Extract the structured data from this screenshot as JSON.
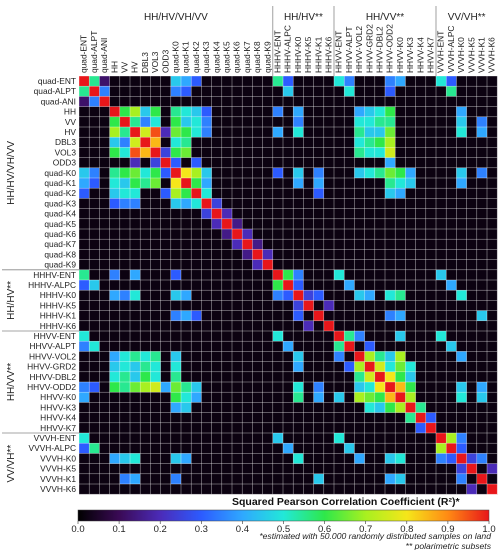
{
  "chart_data": {
    "type": "heatmap",
    "labels": [
      "quad-ENT",
      "quad-ALPT",
      "quad-ANI",
      "HH",
      "VV",
      "HV",
      "DBL3",
      "VOL3",
      "ODD3",
      "quad-K0",
      "quad-K1",
      "quad-K2",
      "quad-K3",
      "quad-K4",
      "quad-K5",
      "quad-K6",
      "quad-K7",
      "quad-K8",
      "quad-K9",
      "HHHV-ENT",
      "HHHV-ALPC",
      "HHHV-K0",
      "HHHV-K5",
      "HHHV-K1",
      "HHHV-K6",
      "HHVV-ENT",
      "HHVV-ALPT",
      "HHVV-VOL2",
      "HHVV-GRD2",
      "HHVV-DBL2",
      "HHVV-ODD2",
      "HHVV-K0",
      "HHVV-K3",
      "HHVV-K4",
      "HHVV-K7",
      "VVVH-ENT",
      "VVVH-ALPC",
      "VVVH-K0",
      "VVVH-K5",
      "VVVH-K1",
      "VVVH-K6"
    ],
    "groups": [
      {
        "name": "HH/HV/VH/VV",
        "start": 0,
        "end": 18
      },
      {
        "name": "HH/HV**",
        "start": 19,
        "end": 24
      },
      {
        "name": "HH/VV**",
        "start": 25,
        "end": 34
      },
      {
        "name": "VV/VH**",
        "start": 35,
        "end": 40
      }
    ],
    "colorbar": {
      "title": "Squared Pearson Correlation Coefficient (R²)*",
      "ticks": [
        "0.0",
        "0.1",
        "0.2",
        "0.3",
        "0.4",
        "0.5",
        "0.6",
        "0.7",
        "0.8",
        "0.9",
        "1.0"
      ],
      "range": [
        0,
        1
      ]
    },
    "notes": [
      "*estimated with 50.000 randomly distributed samples on land",
      "** polarimetric subsets"
    ],
    "strong_pairs": [
      [
        0,
        1,
        0.55
      ],
      [
        1,
        2,
        0.35
      ],
      [
        0,
        2,
        0.12
      ],
      [
        3,
        4,
        0.6
      ],
      [
        3,
        5,
        0.7
      ],
      [
        4,
        5,
        0.55
      ],
      [
        3,
        6,
        0.45
      ],
      [
        4,
        6,
        0.35
      ],
      [
        5,
        6,
        0.75
      ],
      [
        5,
        7,
        0.95
      ],
      [
        6,
        7,
        0.85
      ],
      [
        3,
        7,
        0.6
      ],
      [
        4,
        7,
        0.5
      ],
      [
        7,
        8,
        0.25
      ],
      [
        5,
        8,
        0.2
      ],
      [
        3,
        9,
        0.55
      ],
      [
        4,
        9,
        0.6
      ],
      [
        5,
        9,
        0.65
      ],
      [
        6,
        9,
        0.5
      ],
      [
        7,
        9,
        0.6
      ],
      [
        8,
        9,
        0.3
      ],
      [
        3,
        10,
        0.5
      ],
      [
        4,
        10,
        0.45
      ],
      [
        5,
        10,
        0.6
      ],
      [
        6,
        10,
        0.55
      ],
      [
        7,
        10,
        0.65
      ],
      [
        9,
        10,
        0.8
      ],
      [
        3,
        11,
        0.45
      ],
      [
        4,
        11,
        0.5
      ],
      [
        5,
        11,
        0.5
      ],
      [
        9,
        11,
        0.7
      ],
      [
        10,
        11,
        0.6
      ],
      [
        8,
        11,
        0.3
      ],
      [
        3,
        12,
        0.3
      ],
      [
        4,
        12,
        0.35
      ],
      [
        5,
        12,
        0.35
      ],
      [
        9,
        12,
        0.45
      ],
      [
        10,
        12,
        0.4
      ],
      [
        11,
        12,
        0.5
      ],
      [
        0,
        9,
        0.45
      ],
      [
        0,
        10,
        0.4
      ],
      [
        1,
        9,
        0.35
      ],
      [
        0,
        11,
        0.3
      ],
      [
        1,
        10,
        0.3
      ],
      [
        0,
        19,
        0.55
      ],
      [
        1,
        20,
        0.45
      ],
      [
        0,
        20,
        0.3
      ],
      [
        19,
        20,
        0.6
      ],
      [
        19,
        21,
        0.35
      ],
      [
        20,
        21,
        0.3
      ],
      [
        21,
        22,
        0.25
      ],
      [
        21,
        23,
        0.3
      ],
      [
        22,
        24,
        0.2
      ],
      [
        9,
        21,
        0.45
      ],
      [
        10,
        21,
        0.4
      ],
      [
        5,
        21,
        0.5
      ],
      [
        3,
        21,
        0.4
      ],
      [
        4,
        21,
        0.35
      ],
      [
        9,
        23,
        0.35
      ],
      [
        10,
        23,
        0.4
      ],
      [
        11,
        23,
        0.3
      ],
      [
        3,
        19,
        0.35
      ],
      [
        5,
        19,
        0.4
      ],
      [
        9,
        19,
        0.3
      ],
      [
        0,
        25,
        0.5
      ],
      [
        1,
        26,
        0.5
      ],
      [
        0,
        26,
        0.35
      ],
      [
        25,
        26,
        0.55
      ],
      [
        25,
        27,
        0.35
      ],
      [
        26,
        28,
        0.3
      ],
      [
        27,
        28,
        0.7
      ],
      [
        27,
        29,
        0.55
      ],
      [
        28,
        29,
        0.75
      ],
      [
        27,
        30,
        0.45
      ],
      [
        28,
        30,
        0.5
      ],
      [
        29,
        30,
        0.8
      ],
      [
        25,
        31,
        0.45
      ],
      [
        27,
        31,
        0.7
      ],
      [
        28,
        31,
        0.65
      ],
      [
        29,
        31,
        0.6
      ],
      [
        30,
        31,
        0.85
      ],
      [
        31,
        32,
        0.7
      ],
      [
        30,
        32,
        0.6
      ],
      [
        28,
        32,
        0.5
      ],
      [
        32,
        33,
        0.55
      ],
      [
        33,
        34,
        0.3
      ],
      [
        29,
        32,
        0.45
      ],
      [
        3,
        27,
        0.4
      ],
      [
        4,
        27,
        0.5
      ],
      [
        5,
        27,
        0.55
      ],
      [
        6,
        27,
        0.5
      ],
      [
        7,
        27,
        0.55
      ],
      [
        3,
        28,
        0.45
      ],
      [
        4,
        28,
        0.5
      ],
      [
        5,
        28,
        0.45
      ],
      [
        6,
        28,
        0.55
      ],
      [
        7,
        28,
        0.5
      ],
      [
        3,
        29,
        0.5
      ],
      [
        4,
        29,
        0.55
      ],
      [
        5,
        29,
        0.45
      ],
      [
        6,
        29,
        0.6
      ],
      [
        7,
        29,
        0.5
      ],
      [
        3,
        30,
        0.6
      ],
      [
        4,
        30,
        0.55
      ],
      [
        5,
        30,
        0.65
      ],
      [
        6,
        30,
        0.7
      ],
      [
        7,
        30,
        0.75
      ],
      [
        8,
        30,
        0.4
      ],
      [
        9,
        27,
        0.45
      ],
      [
        9,
        28,
        0.5
      ],
      [
        9,
        29,
        0.55
      ],
      [
        9,
        30,
        0.65
      ],
      [
        9,
        31,
        0.6
      ],
      [
        10,
        30,
        0.55
      ],
      [
        10,
        31,
        0.5
      ],
      [
        11,
        30,
        0.45
      ],
      [
        11,
        31,
        0.4
      ],
      [
        9,
        32,
        0.4
      ],
      [
        10,
        32,
        0.45
      ],
      [
        0,
        31,
        0.4
      ],
      [
        0,
        30,
        0.35
      ],
      [
        1,
        30,
        0.3
      ],
      [
        19,
        25,
        0.5
      ],
      [
        20,
        26,
        0.4
      ],
      [
        21,
        27,
        0.45
      ],
      [
        21,
        28,
        0.4
      ],
      [
        21,
        30,
        0.5
      ],
      [
        21,
        31,
        0.55
      ],
      [
        23,
        30,
        0.35
      ],
      [
        23,
        31,
        0.4
      ],
      [
        0,
        35,
        0.5
      ],
      [
        1,
        36,
        0.55
      ],
      [
        0,
        36,
        0.3
      ],
      [
        35,
        36,
        0.7
      ],
      [
        35,
        37,
        0.35
      ],
      [
        36,
        37,
        0.3
      ],
      [
        37,
        38,
        0.25
      ],
      [
        37,
        39,
        0.35
      ],
      [
        38,
        40,
        0.2
      ],
      [
        3,
        37,
        0.4
      ],
      [
        4,
        37,
        0.45
      ],
      [
        5,
        37,
        0.5
      ],
      [
        9,
        37,
        0.45
      ],
      [
        10,
        37,
        0.4
      ],
      [
        4,
        39,
        0.35
      ],
      [
        5,
        39,
        0.4
      ],
      [
        9,
        39,
        0.35
      ],
      [
        19,
        35,
        0.45
      ],
      [
        20,
        36,
        0.4
      ],
      [
        21,
        37,
        0.5
      ],
      [
        23,
        39,
        0.45
      ],
      [
        25,
        35,
        0.5
      ],
      [
        26,
        36,
        0.45
      ],
      [
        27,
        37,
        0.4
      ],
      [
        30,
        37,
        0.45
      ],
      [
        31,
        37,
        0.5
      ],
      [
        30,
        39,
        0.4
      ],
      [
        31,
        39,
        0.45
      ],
      [
        13,
        14,
        0.2
      ],
      [
        14,
        15,
        0.15
      ],
      [
        15,
        16,
        0.2
      ],
      [
        16,
        17,
        0.15
      ],
      [
        17,
        18,
        0.2
      ],
      [
        12,
        13,
        0.25
      ]
    ]
  }
}
